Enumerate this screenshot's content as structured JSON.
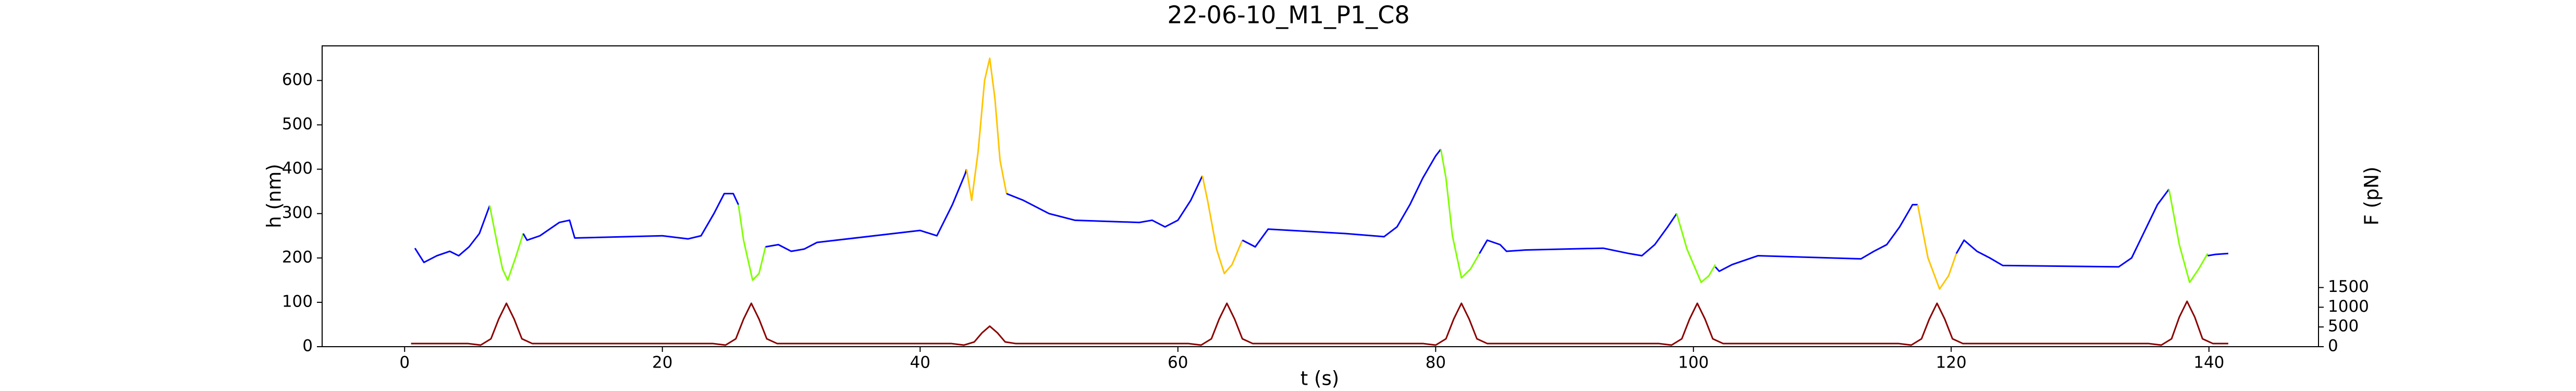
{
  "chart_data": {
    "type": "line",
    "title": "22-06-10_M1_P1_C8",
    "xlabel": "t (s)",
    "ylabel": "h (nm)",
    "y2label": "F (pN)",
    "ylabel_color": "#0000ff",
    "y2label_color": "#b01010",
    "xlim": [
      -6.4,
      148.5
    ],
    "xticks": [
      0,
      20,
      40,
      60,
      80,
      100,
      120,
      140
    ],
    "ylim": [
      0,
      678
    ],
    "yticks": [
      0,
      100,
      200,
      300,
      400,
      500,
      600
    ],
    "y2lim": [
      0,
      7625
    ],
    "y2ticks": [
      0,
      500,
      1000,
      1500
    ],
    "series": [
      {
        "color": "#0000ff",
        "x": [
          0.8,
          1.5,
          2.5,
          3.5,
          4.2,
          5,
          5.8,
          6.6
        ],
        "values": [
          222,
          190,
          205,
          215,
          205,
          225,
          255,
          318
        ]
      },
      {
        "color": "#7fff00",
        "x": [
          6.6,
          7.2,
          7.6,
          8.0,
          8.6,
          9.2
        ],
        "values": [
          318,
          230,
          175,
          150,
          200,
          255
        ]
      },
      {
        "color": "#0000ff",
        "x": [
          9.2,
          9.5,
          10.5,
          12,
          12.8,
          13.2,
          20,
          22,
          23,
          24,
          24.8,
          25.5,
          25.9
        ],
        "values": [
          255,
          240,
          250,
          280,
          285,
          245,
          250,
          243,
          250,
          300,
          345,
          345,
          320
        ]
      },
      {
        "color": "#7fff00",
        "x": [
          25.9,
          26.3,
          27,
          27.5,
          28
        ],
        "values": [
          320,
          240,
          150,
          165,
          225
        ]
      },
      {
        "color": "#0000ff",
        "x": [
          28,
          29,
          30,
          31,
          32,
          40,
          41.3,
          42.5,
          43.5,
          43.6
        ],
        "values": [
          225,
          230,
          215,
          220,
          235,
          262,
          250,
          320,
          390,
          400
        ]
      },
      {
        "color": "#ffc400",
        "x": [
          43.6,
          44,
          44.5,
          45,
          45.4,
          45.8,
          46.2,
          46.7
        ],
        "values": [
          400,
          330,
          440,
          600,
          650,
          560,
          420,
          345
        ]
      },
      {
        "color": "#0000ff",
        "x": [
          46.7,
          48,
          50,
          52,
          57,
          58,
          59,
          60,
          61,
          61.9
        ],
        "values": [
          345,
          330,
          300,
          285,
          280,
          285,
          270,
          285,
          330,
          385
        ]
      },
      {
        "color": "#ffc400",
        "x": [
          61.9,
          62.3,
          63,
          63.6,
          64.2,
          65
        ],
        "values": [
          385,
          330,
          220,
          165,
          185,
          240
        ]
      },
      {
        "color": "#0000ff",
        "x": [
          65,
          66,
          67,
          73,
          76,
          77,
          78,
          79,
          80,
          80.4
        ],
        "values": [
          240,
          225,
          265,
          255,
          248,
          270,
          320,
          380,
          430,
          445
        ]
      },
      {
        "color": "#7fff00",
        "x": [
          80.4,
          80.8,
          81.3,
          82,
          82.7,
          83.4
        ],
        "values": [
          445,
          380,
          250,
          155,
          175,
          210
        ]
      },
      {
        "color": "#0000ff",
        "x": [
          83.4,
          84,
          85,
          85.5,
          87,
          93,
          95,
          96,
          97,
          98,
          98.7
        ],
        "values": [
          210,
          240,
          230,
          215,
          218,
          222,
          210,
          205,
          230,
          270,
          300
        ]
      },
      {
        "color": "#7fff00",
        "x": [
          98.7,
          99.5,
          100.6,
          101.2,
          101.7
        ],
        "values": [
          300,
          220,
          145,
          160,
          185
        ]
      },
      {
        "color": "#0000ff",
        "x": [
          101.7,
          102,
          103,
          105,
          113,
          114,
          115,
          116,
          117,
          117.4
        ],
        "values": [
          180,
          170,
          185,
          205,
          198,
          215,
          230,
          270,
          320,
          320
        ]
      },
      {
        "color": "#ffc400",
        "x": [
          117.4,
          118.2,
          119.1,
          119.8,
          120.4
        ],
        "values": [
          320,
          200,
          130,
          160,
          210
        ]
      },
      {
        "color": "#0000ff",
        "x": [
          120.4,
          121,
          122,
          123,
          124,
          133,
          134,
          135,
          136,
          136.9
        ],
        "values": [
          210,
          240,
          215,
          200,
          183,
          180,
          200,
          260,
          320,
          355
        ]
      },
      {
        "color": "#7fff00",
        "x": [
          136.9,
          137.7,
          138.5,
          139.2,
          139.9
        ],
        "values": [
          355,
          230,
          145,
          175,
          210
        ]
      },
      {
        "color": "#0000ff",
        "x": [
          139.9,
          140.5,
          141.5
        ],
        "values": [
          205,
          208,
          210
        ]
      },
      {
        "color": "#8b0000",
        "axis": "y2",
        "x": [
          0.5,
          4.9,
          5.9,
          6.7,
          7.3,
          7.9,
          8.5,
          9.1,
          9.9,
          23.9,
          24.9,
          25.7,
          26.3,
          26.9,
          27.5,
          28.1,
          28.9,
          42.4,
          43.4,
          44.2,
          44.8,
          45.4,
          46.0,
          46.6,
          47.4,
          60.8,
          61.8,
          62.6,
          63.2,
          63.8,
          64.4,
          65.0,
          65.8,
          79.0,
          80.0,
          80.8,
          81.4,
          82.0,
          82.6,
          83.2,
          84.0,
          97.3,
          98.3,
          99.1,
          99.7,
          100.3,
          100.9,
          101.5,
          102.3,
          115.9,
          116.9,
          117.7,
          118.3,
          118.9,
          119.5,
          120.1,
          120.9,
          135.3,
          136.3,
          137.1,
          137.7,
          138.3,
          138.9,
          139.5,
          140.3,
          141.5
        ],
        "values": [
          80,
          80,
          40,
          200,
          700,
          1100,
          700,
          200,
          80,
          80,
          40,
          200,
          700,
          1100,
          700,
          200,
          80,
          80,
          40,
          120,
          350,
          520,
          350,
          120,
          80,
          80,
          40,
          200,
          700,
          1100,
          700,
          200,
          80,
          80,
          40,
          200,
          700,
          1100,
          700,
          200,
          80,
          80,
          40,
          200,
          700,
          1100,
          700,
          200,
          80,
          80,
          40,
          200,
          700,
          1100,
          700,
          200,
          80,
          80,
          40,
          200,
          750,
          1150,
          750,
          200,
          80,
          80
        ]
      }
    ]
  }
}
